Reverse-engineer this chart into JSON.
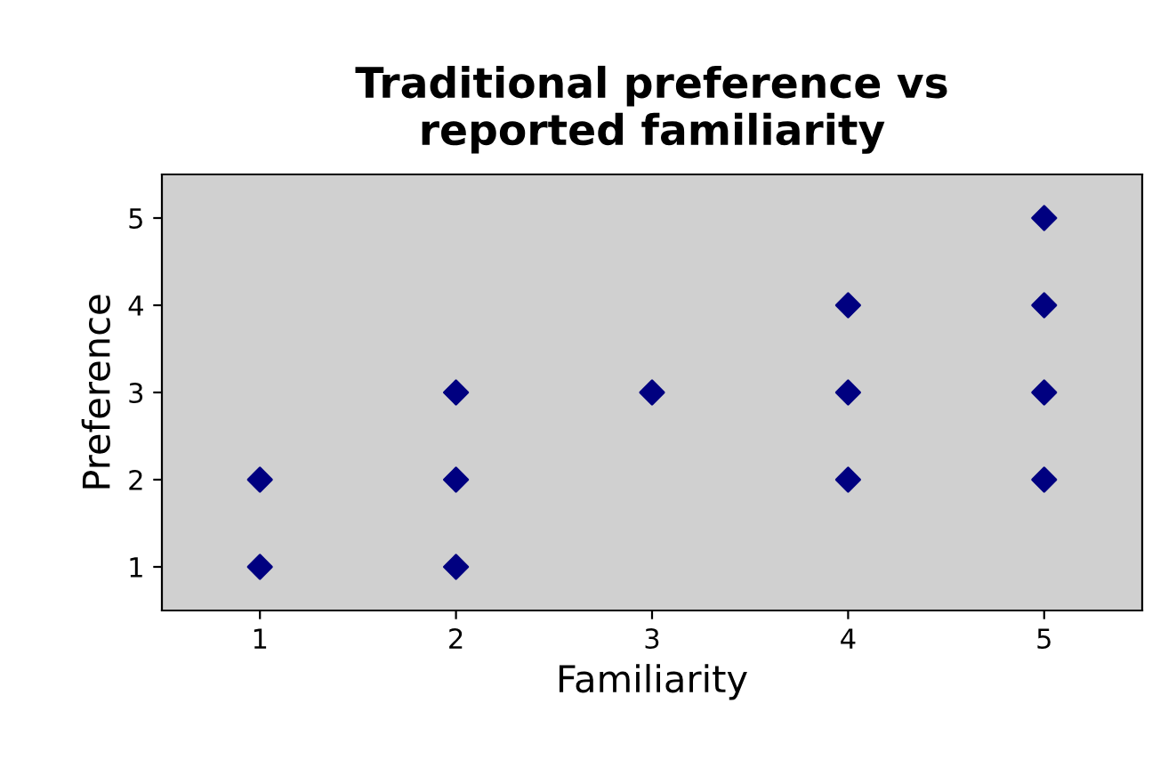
{
  "chart_data": {
    "type": "scatter",
    "title": "Traditional preference vs\nreported familiarity",
    "xlabel": "Familiarity",
    "ylabel": "Preference",
    "series": [
      {
        "color": "#000080",
        "x": [
          1,
          1,
          2,
          2,
          2,
          3,
          4,
          4,
          4,
          5,
          5,
          5,
          5
        ],
        "values": [
          1,
          2,
          1,
          2,
          3,
          3,
          2,
          3,
          4,
          2,
          3,
          4,
          5
        ]
      }
    ],
    "xlim": [
      0.5,
      5.5
    ],
    "ylim": [
      0.5,
      5.5
    ],
    "xticks": [
      1,
      2,
      3,
      4,
      5
    ],
    "yticks": [
      1,
      2,
      3,
      4,
      5
    ],
    "marker": "diamond",
    "grid": false,
    "legend": false
  }
}
